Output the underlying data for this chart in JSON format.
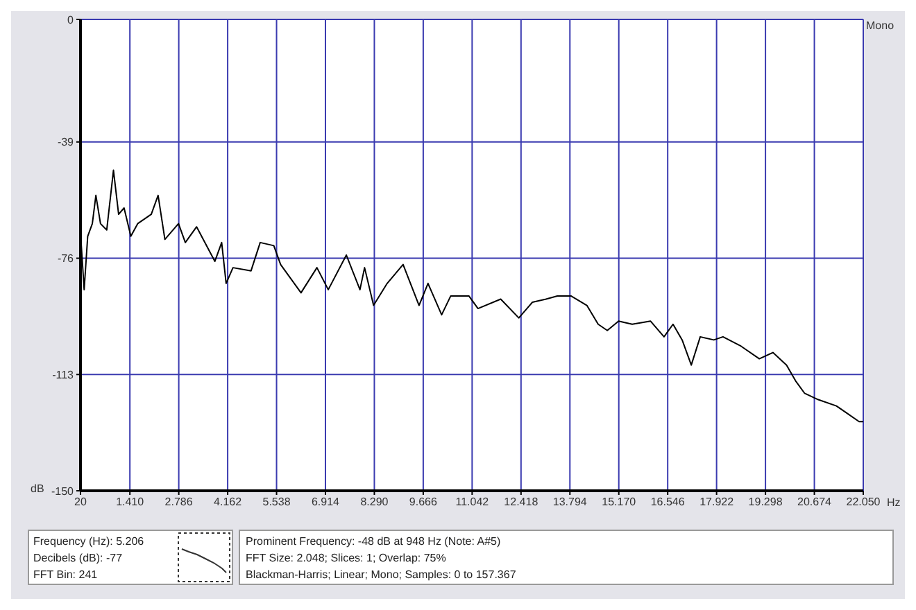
{
  "chart_data": {
    "type": "line",
    "xlabel": "Hz",
    "ylabel": "dB",
    "x": [
      20,
      123,
      223,
      353,
      453,
      583,
      759,
      948,
      1093,
      1246,
      1437,
      1629,
      2012,
      2204,
      2395,
      2778,
      2970,
      3288,
      3801,
      3993,
      4119,
      4311,
      4820,
      5077,
      5460,
      5652,
      6226,
      6674,
      6993,
      7502,
      7885,
      8015,
      8268,
      8651,
      9099,
      9548,
      9800,
      10184,
      10440,
      10950,
      11207,
      11846,
      12356,
      12739,
      13122,
      13440,
      13823,
      14271,
      14589,
      14846,
      15164,
      15547,
      16060,
      16443,
      16696,
      16953,
      17210,
      17462,
      17846,
      18102,
      18612,
      19125,
      19508,
      19891,
      20144,
      20401,
      20784,
      21294,
      21550,
      21933,
      22050
    ],
    "series": [
      {
        "color": "#000000",
        "values": [
          -68,
          -86,
          -69,
          -65,
          -56,
          -65,
          -67,
          -48,
          -62,
          -60,
          -69,
          -65,
          -62,
          -56,
          -70,
          -65,
          -71,
          -66,
          -77,
          -71,
          -84,
          -79,
          -80,
          -71,
          -72,
          -78,
          -87,
          -79,
          -86,
          -75,
          -86,
          -79,
          -91,
          -84,
          -78,
          -91,
          -84,
          -94,
          -88,
          -88,
          -92,
          -89,
          -95,
          -90,
          -89,
          -88,
          -88,
          -91,
          -97,
          -99,
          -96,
          -97,
          -96,
          -101,
          -97,
          -102,
          -110,
          -101,
          -102,
          -101,
          -104,
          -108,
          -106,
          -110,
          -115,
          -119,
          -121,
          -123,
          -125,
          -128,
          -128
        ]
      }
    ],
    "xlim": [
      20,
      22050
    ],
    "ylim": [
      -150,
      0
    ],
    "xticks": [
      20,
      {
        "value": 1410,
        "label": "1.410"
      },
      {
        "value": 2786,
        "label": "2.786"
      },
      {
        "value": 4162,
        "label": "4.162"
      },
      {
        "value": 5538,
        "label": "5.538"
      },
      {
        "value": 6914,
        "label": "6.914"
      },
      {
        "value": 8290,
        "label": "8.290"
      },
      {
        "value": 9666,
        "label": "9.666"
      },
      {
        "value": 11042,
        "label": "11.042"
      },
      {
        "value": 12418,
        "label": "12.418"
      },
      {
        "value": 13794,
        "label": "13.794"
      },
      {
        "value": 15170,
        "label": "15.170"
      },
      {
        "value": 16546,
        "label": "16.546"
      },
      {
        "value": 17922,
        "label": "17.922"
      },
      {
        "value": 19298,
        "label": "19.298"
      },
      {
        "value": 20674,
        "label": "20.674"
      },
      {
        "value": 22050,
        "label": "22.050"
      }
    ],
    "yticks": [
      0,
      -39,
      -76,
      -113,
      -150
    ],
    "grid": true,
    "line_style": "solid",
    "annotations": [
      "Mono",
      "Frequency (Hz): 5.206",
      "Decibels (dB): -77",
      "FFT Bin: 241",
      "Prominent Frequency: -48 dB at 948 Hz (Note: A#5)",
      "FFT Size: 2.048; Slices: 1; Overlap: 75%",
      "Blackman-Harris; Linear; Mono; Samples: 0 to 157.367"
    ]
  }
}
